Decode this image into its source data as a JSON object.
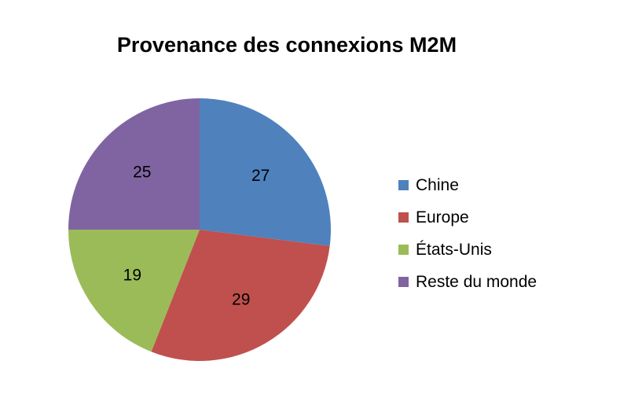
{
  "chart_data": {
    "type": "pie",
    "title": "Provenance des connexions M2M",
    "categories": [
      "Chine",
      "Europe",
      "États-Unis",
      "Reste du monde"
    ],
    "values": [
      27,
      29,
      19,
      25
    ],
    "colors": [
      "#4f81bd",
      "#c0504d",
      "#9bbb59",
      "#8064a2"
    ],
    "legend_position": "right",
    "start_angle_deg": 0,
    "direction": "clockwise"
  }
}
